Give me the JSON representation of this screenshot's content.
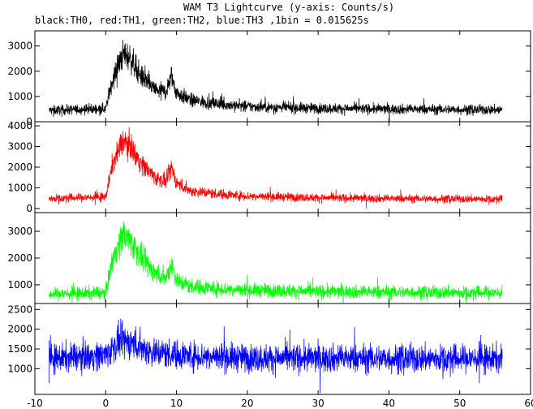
{
  "chart_data": {
    "type": "line",
    "title": "WAM T3 Lightcurve (y-axis: Counts/s)",
    "subtitle": "black:TH0, red:TH1, green:TH2, blue:TH3 ,1bin = 0.015625s",
    "xlabel": "",
    "ylabel": "",
    "grid": false,
    "xlim": [
      -10,
      60
    ],
    "x_ticks": [
      -10,
      0,
      10,
      20,
      30,
      40,
      50,
      60
    ],
    "x_range": [
      -8,
      56
    ],
    "bin_seconds": 0.015625,
    "panels": [
      {
        "series_name": "TH0",
        "color": "#000000",
        "ylim": [
          0,
          3600
        ],
        "y_ticks": [
          0,
          1000,
          2000,
          3000
        ],
        "profile": [
          [
            -8,
            450
          ],
          [
            0,
            520
          ],
          [
            1,
            1700
          ],
          [
            2.5,
            2700
          ],
          [
            3.5,
            2500
          ],
          [
            5,
            1800
          ],
          [
            7,
            1250
          ],
          [
            8.5,
            1200
          ],
          [
            9.3,
            1800
          ],
          [
            10,
            1150
          ],
          [
            12,
            850
          ],
          [
            16,
            700
          ],
          [
            20,
            600
          ],
          [
            30,
            530
          ],
          [
            40,
            500
          ],
          [
            56,
            470
          ]
        ]
      },
      {
        "series_name": "TH1",
        "color": "#ff0000",
        "ylim": [
          -200,
          4200
        ],
        "y_ticks": [
          0,
          1000,
          2000,
          3000,
          4000
        ],
        "profile": [
          [
            -8,
            480
          ],
          [
            0,
            560
          ],
          [
            1,
            2200
          ],
          [
            2.5,
            3300
          ],
          [
            3.5,
            3000
          ],
          [
            5,
            2200
          ],
          [
            7,
            1500
          ],
          [
            8.5,
            1300
          ],
          [
            9.3,
            2000
          ],
          [
            10,
            1250
          ],
          [
            12,
            850
          ],
          [
            16,
            700
          ],
          [
            20,
            600
          ],
          [
            30,
            520
          ],
          [
            40,
            480
          ],
          [
            56,
            450
          ]
        ]
      },
      {
        "series_name": "TH2",
        "color": "#00ff00",
        "ylim": [
          300,
          3700
        ],
        "y_ticks": [
          1000,
          2000,
          3000
        ],
        "profile": [
          [
            -8,
            650
          ],
          [
            0,
            700
          ],
          [
            1,
            2000
          ],
          [
            2.5,
            2900
          ],
          [
            3.5,
            2650
          ],
          [
            5,
            2000
          ],
          [
            7,
            1450
          ],
          [
            8.5,
            1250
          ],
          [
            9.3,
            1800
          ],
          [
            10,
            1150
          ],
          [
            12,
            950
          ],
          [
            16,
            850
          ],
          [
            20,
            800
          ],
          [
            30,
            750
          ],
          [
            40,
            720
          ],
          [
            56,
            700
          ]
        ]
      },
      {
        "series_name": "TH3",
        "color": "#0000ff",
        "ylim": [
          350,
          2650
        ],
        "y_ticks": [
          1000,
          1500,
          2000,
          2500
        ],
        "profile": [
          [
            -8,
            1250
          ],
          [
            0,
            1350
          ],
          [
            2,
            1700
          ],
          [
            4,
            1650
          ],
          [
            6,
            1450
          ],
          [
            10,
            1350
          ],
          [
            20,
            1270
          ],
          [
            56,
            1250
          ]
        ]
      }
    ]
  }
}
